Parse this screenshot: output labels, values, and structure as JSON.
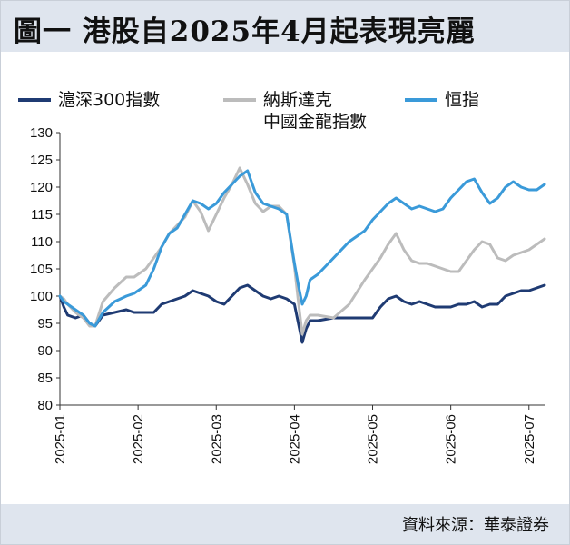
{
  "title": "圖一 港股自2025年4月起表現亮麗",
  "source": "資料來源：華泰證券",
  "chart_data": {
    "type": "line",
    "title": "",
    "xlabel": "",
    "ylabel": "",
    "ylim": [
      80,
      130
    ],
    "yticks": [
      "80",
      "85",
      "90",
      "95",
      "100",
      "105",
      "110",
      "115",
      "120",
      "125",
      "130"
    ],
    "xticks": [
      "2025-01",
      "2025-02",
      "2025-03",
      "2025-04",
      "2025-05",
      "2025-06",
      "2025-07"
    ],
    "legend_position": "top",
    "grid": false,
    "series": [
      {
        "name": "滬深300指數",
        "color": "#1f3b73",
        "x": [
          0,
          0.05,
          0.1,
          0.2,
          0.3,
          0.38,
          0.45,
          0.55,
          0.7,
          0.85,
          0.95,
          1.0,
          1.1,
          1.2,
          1.3,
          1.4,
          1.5,
          1.6,
          1.7,
          1.8,
          1.9,
          2.0,
          2.1,
          2.2,
          2.3,
          2.4,
          2.5,
          2.6,
          2.7,
          2.8,
          2.9,
          3.0,
          3.05,
          3.1,
          3.15,
          3.2,
          3.3,
          3.5,
          3.7,
          3.9,
          4.0,
          4.1,
          4.2,
          4.3,
          4.4,
          4.5,
          4.6,
          4.7,
          4.8,
          4.9,
          5.0,
          5.1,
          5.2,
          5.3,
          5.4,
          5.5,
          5.6,
          5.7,
          5.8,
          5.9,
          6.0,
          6.1,
          6.2
        ],
        "values": [
          100,
          98,
          96.5,
          96,
          96.5,
          95,
          94.5,
          96.5,
          97,
          97.5,
          97,
          97,
          97,
          97,
          98.5,
          99,
          99.5,
          100,
          101,
          100.5,
          100,
          99,
          98.5,
          100,
          101.5,
          102,
          101,
          100,
          99.5,
          100,
          99.5,
          98.5,
          95,
          91.5,
          94,
          95.5,
          95.5,
          96,
          96,
          96,
          96,
          98,
          99.5,
          100,
          99,
          98.5,
          99,
          98.5,
          98,
          98,
          98,
          98.5,
          98.5,
          99,
          98,
          98.5,
          98.5,
          100,
          100.5,
          101,
          101,
          101.5,
          102
        ]
      },
      {
        "name": "納斯達克中國金龍指數",
        "color": "#bcbcbc",
        "x": [
          0,
          0.05,
          0.1,
          0.2,
          0.3,
          0.38,
          0.45,
          0.55,
          0.7,
          0.85,
          0.95,
          1.0,
          1.1,
          1.2,
          1.3,
          1.4,
          1.5,
          1.6,
          1.7,
          1.8,
          1.9,
          2.0,
          2.1,
          2.2,
          2.3,
          2.4,
          2.5,
          2.6,
          2.7,
          2.8,
          2.9,
          3.0,
          3.05,
          3.1,
          3.15,
          3.2,
          3.3,
          3.5,
          3.7,
          3.9,
          4.0,
          4.1,
          4.2,
          4.3,
          4.4,
          4.5,
          4.6,
          4.7,
          4.8,
          4.9,
          5.0,
          5.1,
          5.2,
          5.3,
          5.4,
          5.5,
          5.6,
          5.7,
          5.8,
          5.9,
          6.0,
          6.1,
          6.2
        ],
        "values": [
          100,
          99.5,
          98.5,
          97,
          96,
          94.5,
          94.5,
          99,
          101.5,
          103.5,
          103.5,
          104,
          105,
          107,
          109,
          111.5,
          113,
          114.5,
          117.5,
          115.5,
          112,
          115,
          118,
          120.5,
          123.5,
          120.5,
          117,
          115.5,
          116.5,
          116.5,
          115,
          105.5,
          99,
          93,
          95.5,
          96.5,
          96.5,
          96,
          98.5,
          103,
          105,
          107,
          109.5,
          111.5,
          108.5,
          106.5,
          106,
          106,
          105.5,
          105,
          104.5,
          104.5,
          106.5,
          108.5,
          110,
          109.5,
          107,
          106.5,
          107.5,
          108,
          108.5,
          109.5,
          110.5
        ]
      },
      {
        "name": "恒指",
        "color": "#3a9ad9",
        "x": [
          0,
          0.05,
          0.1,
          0.2,
          0.3,
          0.38,
          0.45,
          0.55,
          0.7,
          0.85,
          0.95,
          1.0,
          1.1,
          1.2,
          1.3,
          1.4,
          1.5,
          1.6,
          1.7,
          1.8,
          1.9,
          2.0,
          2.1,
          2.2,
          2.3,
          2.4,
          2.5,
          2.6,
          2.7,
          2.8,
          2.9,
          3.0,
          3.05,
          3.1,
          3.15,
          3.2,
          3.3,
          3.5,
          3.7,
          3.9,
          4.0,
          4.1,
          4.2,
          4.3,
          4.4,
          4.5,
          4.6,
          4.7,
          4.8,
          4.9,
          5.0,
          5.1,
          5.2,
          5.3,
          5.4,
          5.5,
          5.6,
          5.7,
          5.8,
          5.9,
          6.0,
          6.1,
          6.2
        ],
        "values": [
          100,
          99,
          98.5,
          97.5,
          96.5,
          95,
          94.5,
          97,
          99,
          100,
          100.5,
          101,
          102,
          105,
          109,
          111.5,
          112.5,
          115,
          117.5,
          117,
          116,
          117,
          119,
          120.5,
          122,
          123,
          119,
          117,
          116.5,
          116,
          115,
          106,
          102,
          98.5,
          100,
          103,
          104,
          107,
          110,
          112,
          114,
          115.5,
          117,
          118,
          117,
          116,
          116.5,
          116,
          115.5,
          116,
          118,
          119.5,
          121,
          121.5,
          119,
          117,
          118,
          120,
          121,
          120,
          119.5,
          119.5,
          120.5
        ]
      }
    ]
  }
}
